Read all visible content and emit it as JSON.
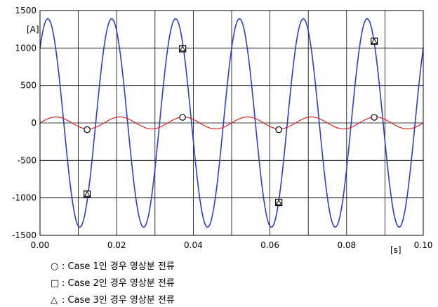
{
  "chart_data": {
    "type": "line",
    "x_range": [
      0,
      0.1
    ],
    "y_range": [
      -1500,
      1500
    ],
    "x_ticks": [
      "0.00",
      "0.02",
      "0.04",
      "0.06",
      "0.08",
      "0.10"
    ],
    "x_tick_values": [
      0,
      0.02,
      0.04,
      0.06,
      0.08,
      0.1
    ],
    "y_ticks": [
      "1500",
      "1000",
      "500",
      "0",
      "-500",
      "-1000",
      "-1500"
    ],
    "y_tick_values": [
      1500,
      1000,
      500,
      0,
      -500,
      -1000,
      -1500
    ],
    "xlabel": "[s]",
    "ylabel": "[A]",
    "grid": true,
    "series": [
      {
        "color": "#2a3fd0",
        "amplitude": 1390,
        "frequency_hz": 60,
        "phase_deg": 46
      },
      {
        "color": "#e02020",
        "amplitude": 80,
        "frequency_hz": 60,
        "phase_deg": 0
      }
    ],
    "markers": [
      {
        "shape": "circle",
        "x": 0.0123,
        "y": -90
      },
      {
        "shape": "circle",
        "x": 0.0372,
        "y": 75
      },
      {
        "shape": "circle",
        "x": 0.0623,
        "y": -90
      },
      {
        "shape": "circle",
        "x": 0.0872,
        "y": 75
      },
      {
        "shape": "square",
        "x": 0.0123,
        "y": -950
      },
      {
        "shape": "square",
        "x": 0.0372,
        "y": 990
      },
      {
        "shape": "square",
        "x": 0.0623,
        "y": -1060
      },
      {
        "shape": "square",
        "x": 0.0872,
        "y": 1090
      },
      {
        "shape": "triangle",
        "x": 0.0123,
        "y": -950
      },
      {
        "shape": "triangle",
        "x": 0.0372,
        "y": 990
      },
      {
        "shape": "triangle",
        "x": 0.0623,
        "y": -1060
      },
      {
        "shape": "triangle",
        "x": 0.0872,
        "y": 1090
      }
    ]
  },
  "legend": [
    {
      "symbol": "○",
      "text": ": Case 1인 경우 영상분 전류"
    },
    {
      "symbol": "□",
      "text": ": Case 2인 경우 영상분 전류"
    },
    {
      "symbol": "△",
      "text": ": Case 3인 경우 영상분 전류"
    }
  ]
}
